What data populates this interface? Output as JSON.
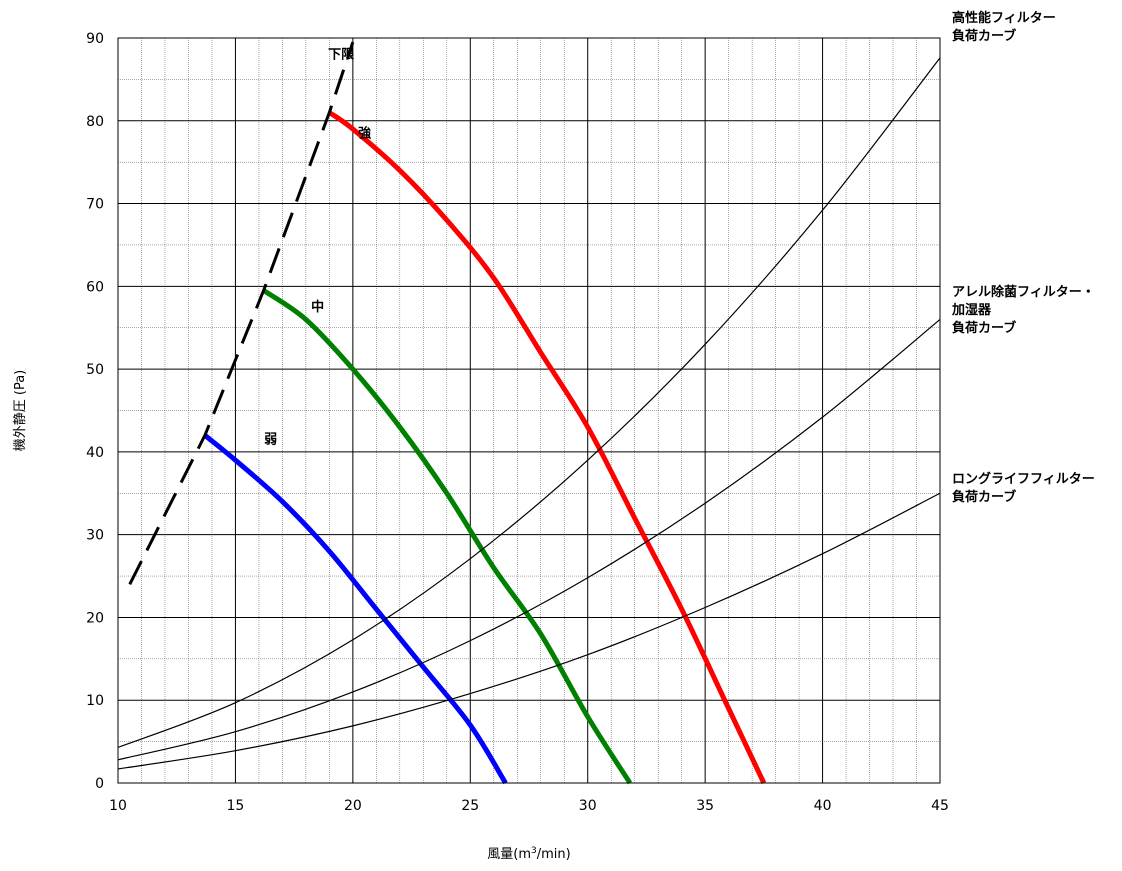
{
  "chart_data": {
    "type": "line",
    "xlabel": "風量(m3/min)",
    "ylabel": "機外静圧 (Pa)",
    "xlim": [
      10,
      45
    ],
    "ylim": [
      0,
      90
    ],
    "x_ticks": [
      "10",
      "15",
      "20",
      "25",
      "30",
      "35",
      "40",
      "45"
    ],
    "y_ticks": [
      "0",
      "10",
      "20",
      "30",
      "40",
      "50",
      "60",
      "70",
      "80",
      "90"
    ],
    "grid": true,
    "series": [
      {
        "name": "強",
        "color": "#ff0000",
        "x": [
          19.0,
          20.0,
          22.0,
          24.0,
          26.0,
          28.0,
          30.0,
          32.0,
          34.0,
          36.0,
          37.5
        ],
        "y": [
          81,
          79,
          74,
          68,
          61,
          52,
          43,
          32,
          21,
          9,
          0
        ]
      },
      {
        "name": "中",
        "color": "#008000",
        "x": [
          16.2,
          18.0,
          20.0,
          22.0,
          24.0,
          26.0,
          28.0,
          30.0,
          31.8
        ],
        "y": [
          59.5,
          56,
          50,
          43,
          35,
          26,
          18,
          8,
          0
        ]
      },
      {
        "name": "弱",
        "color": "#0000ff",
        "x": [
          13.7,
          15.0,
          17.0,
          19.0,
          21.0,
          23.0,
          25.0,
          26.5
        ],
        "y": [
          42,
          39,
          34,
          28,
          21,
          14,
          7,
          0
        ]
      },
      {
        "name": "下限",
        "color": "#000000",
        "dashed": true,
        "x": [
          10.5,
          13.7,
          16.2,
          19.0,
          20.0
        ],
        "y": [
          24,
          42,
          59.5,
          81,
          89.5
        ]
      },
      {
        "name": "高性能フィルター負荷カーブ",
        "color": "#000000",
        "x": [
          10,
          15,
          20,
          25,
          30,
          35,
          40,
          45
        ],
        "y": [
          4.3,
          9.7,
          17.3,
          27.1,
          39,
          53,
          69.2,
          87.6
        ]
      },
      {
        "name": "アレル除菌フィルター・加湿器負荷カーブ",
        "color": "#000000",
        "x": [
          10,
          15,
          20,
          25,
          30,
          35,
          40,
          45
        ],
        "y": [
          2.8,
          6.2,
          11,
          17.2,
          24.8,
          33.8,
          44.2,
          56
        ]
      },
      {
        "name": "ロングライフフィルター負荷カーブ",
        "color": "#000000",
        "x": [
          10,
          15,
          20,
          25,
          30,
          35,
          40,
          45
        ],
        "y": [
          1.7,
          3.9,
          6.9,
          10.8,
          15.5,
          21.2,
          27.7,
          35
        ]
      }
    ],
    "annotations": [
      {
        "text": "下限",
        "x": 19.5,
        "y": 87.5
      },
      {
        "text": "強",
        "x": 20.5,
        "y": 78
      },
      {
        "text": "中",
        "x": 18.5,
        "y": 57
      },
      {
        "text": "弱",
        "x": 16.5,
        "y": 41
      }
    ],
    "curve_labels": [
      {
        "lines": [
          "高性能フィルター",
          "負荷カーブ"
        ]
      },
      {
        "lines": [
          "アレル除菌フィルター・",
          "加湿器",
          "負荷カーブ"
        ]
      },
      {
        "lines": [
          "ロングライフフィルター",
          "負荷カーブ"
        ]
      }
    ]
  }
}
